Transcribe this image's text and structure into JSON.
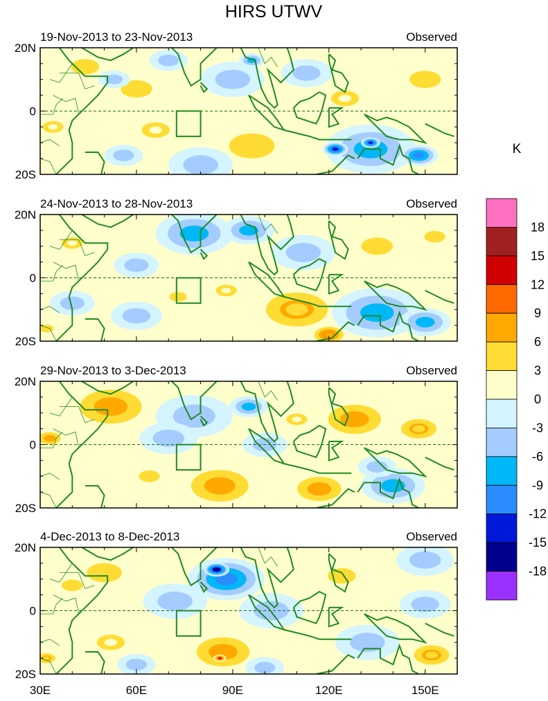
{
  "chart_data": {
    "type": "heatmap",
    "title": "HIRS UTWV",
    "units": "K",
    "x_tick_labels": [
      "30E",
      "60E",
      "90E",
      "120E",
      "150E"
    ],
    "y_tick_labels": [
      "20N",
      "0",
      "20S"
    ],
    "lon_range": [
      30,
      160
    ],
    "lat_range": [
      -20,
      20
    ],
    "colorbar": {
      "levels": [
        "18",
        "15",
        "12",
        "9",
        "6",
        "3",
        "0",
        "-3",
        "-6",
        "-9",
        "-12",
        "-15",
        "-18"
      ],
      "colors": [
        "#ff70c0",
        "#a02020",
        "#d00000",
        "#ff6a00",
        "#ffa800",
        "#ffdc33",
        "#ffffcc",
        "#d4f4ff",
        "#a4ccff",
        "#00b8f8",
        "#2a8cff",
        "#0018d8",
        "#00008c",
        "#9b30ff"
      ]
    },
    "panels": [
      {
        "date_range": "19-Nov-2013 to 23-Nov-2013",
        "tag": "Observed",
        "anomalies": [
          {
            "lon": 44,
            "lat": 14,
            "value": 4,
            "size": 8
          },
          {
            "lon": 60,
            "lat": 7,
            "value": 4,
            "size": 9
          },
          {
            "lon": 53,
            "lat": 10,
            "value": -3,
            "size": 5
          },
          {
            "lon": 90,
            "lat": 10,
            "value": -3,
            "size": 10
          },
          {
            "lon": 70,
            "lat": 16,
            "value": -4,
            "size": 6
          },
          {
            "lon": 96,
            "lat": 16,
            "value": -6,
            "size": 4
          },
          {
            "lon": 113,
            "lat": 12,
            "value": -4,
            "size": 8
          },
          {
            "lon": 125,
            "lat": 4,
            "value": 3,
            "size": 8
          },
          {
            "lon": 150,
            "lat": 10,
            "value": 4,
            "size": 9
          },
          {
            "lon": 96,
            "lat": -11,
            "value": 5,
            "size": 13
          },
          {
            "lon": 66,
            "lat": -6,
            "value": 3,
            "size": 8
          },
          {
            "lon": 34,
            "lat": -5,
            "value": 3,
            "size": 6
          },
          {
            "lon": 80,
            "lat": -17,
            "value": -4,
            "size": 10
          },
          {
            "lon": 56,
            "lat": -14,
            "value": -3,
            "size": 6
          },
          {
            "lon": 133,
            "lat": -12,
            "value": -7,
            "size": 14
          },
          {
            "lon": 122,
            "lat": -12,
            "value": -14,
            "size": 4
          },
          {
            "lon": 133,
            "lat": -10,
            "value": -12,
            "size": 3
          },
          {
            "lon": 148,
            "lat": -14,
            "value": -9,
            "size": 6
          }
        ]
      },
      {
        "date_range": "24-Nov-2013 to 28-Nov-2013",
        "tag": "Observed",
        "anomalies": [
          {
            "lon": 78,
            "lat": 14,
            "value": -7,
            "size": 12
          },
          {
            "lon": 95,
            "lat": 15,
            "value": -7,
            "size": 8
          },
          {
            "lon": 60,
            "lat": 4,
            "value": -3,
            "size": 7
          },
          {
            "lon": 40,
            "lat": 11,
            "value": 3,
            "size": 6
          },
          {
            "lon": 135,
            "lat": 10,
            "value": 4,
            "size": 9
          },
          {
            "lon": 153,
            "lat": 13,
            "value": 5,
            "size": 6
          },
          {
            "lon": 112,
            "lat": 8,
            "value": -3,
            "size": 10
          },
          {
            "lon": 110,
            "lat": -10,
            "value": 6,
            "size": 14
          },
          {
            "lon": 120,
            "lat": -18,
            "value": 9,
            "size": 6
          },
          {
            "lon": 135,
            "lat": -11,
            "value": -8,
            "size": 14
          },
          {
            "lon": 150,
            "lat": -14,
            "value": -8,
            "size": 8
          },
          {
            "lon": 60,
            "lat": -12,
            "value": -3,
            "size": 8
          },
          {
            "lon": 40,
            "lat": -8,
            "value": -4,
            "size": 7
          },
          {
            "lon": 32,
            "lat": -16,
            "value": 5,
            "size": 4
          },
          {
            "lon": 73,
            "lat": -6,
            "value": 4,
            "size": 5
          },
          {
            "lon": 88,
            "lat": -4,
            "value": 3,
            "size": 6
          }
        ]
      },
      {
        "date_range": "29-Nov-2013 to 3-Dec-2013",
        "tag": "Observed",
        "anomalies": [
          {
            "lon": 52,
            "lat": 12,
            "value": 7,
            "size": 14
          },
          {
            "lon": 33,
            "lat": 2,
            "value": 7,
            "size": 5
          },
          {
            "lon": 78,
            "lat": 9,
            "value": -4,
            "size": 12
          },
          {
            "lon": 95,
            "lat": 12,
            "value": -6,
            "size": 6
          },
          {
            "lon": 70,
            "lat": 2,
            "value": -3,
            "size": 9
          },
          {
            "lon": 100,
            "lat": 0,
            "value": -3,
            "size": 7
          },
          {
            "lon": 128,
            "lat": 8,
            "value": 8,
            "size": 12
          },
          {
            "lon": 148,
            "lat": 5,
            "value": 6,
            "size": 8
          },
          {
            "lon": 86,
            "lat": -13,
            "value": 8,
            "size": 13
          },
          {
            "lon": 117,
            "lat": -14,
            "value": 8,
            "size": 10
          },
          {
            "lon": 64,
            "lat": -10,
            "value": 4,
            "size": 6
          },
          {
            "lon": 140,
            "lat": -13,
            "value": -6,
            "size": 10
          },
          {
            "lon": 135,
            "lat": -7,
            "value": -3,
            "size": 6
          },
          {
            "lon": 110,
            "lat": 8,
            "value": 3,
            "size": 6
          }
        ]
      },
      {
        "date_range": "4-Dec-2013 to 8-Dec-2013",
        "tag": "Observed",
        "anomalies": [
          {
            "lon": 88,
            "lat": 10,
            "value": -9,
            "size": 12
          },
          {
            "lon": 85,
            "lat": 13,
            "value": -15,
            "size": 4
          },
          {
            "lon": 72,
            "lat": 3,
            "value": -5,
            "size": 10
          },
          {
            "lon": 102,
            "lat": 0,
            "value": -4,
            "size": 10
          },
          {
            "lon": 50,
            "lat": 12,
            "value": 4,
            "size": 10
          },
          {
            "lon": 40,
            "lat": 8,
            "value": 5,
            "size": 6
          },
          {
            "lon": 124,
            "lat": 11,
            "value": 5,
            "size": 8
          },
          {
            "lon": 150,
            "lat": 16,
            "value": -5,
            "size": 9
          },
          {
            "lon": 150,
            "lat": 2,
            "value": -3,
            "size": 8
          },
          {
            "lon": 87,
            "lat": -13,
            "value": 7,
            "size": 12
          },
          {
            "lon": 86,
            "lat": -15,
            "value": 13,
            "size": 2
          },
          {
            "lon": 52,
            "lat": -10,
            "value": 3,
            "size": 8
          },
          {
            "lon": 32,
            "lat": -15,
            "value": 6,
            "size": 4
          },
          {
            "lon": 152,
            "lat": -14,
            "value": 6,
            "size": 8
          },
          {
            "lon": 132,
            "lat": -10,
            "value": -3,
            "size": 10
          },
          {
            "lon": 100,
            "lat": -18,
            "value": -3,
            "size": 6
          },
          {
            "lon": 60,
            "lat": -17,
            "value": -3,
            "size": 6
          }
        ]
      }
    ]
  }
}
